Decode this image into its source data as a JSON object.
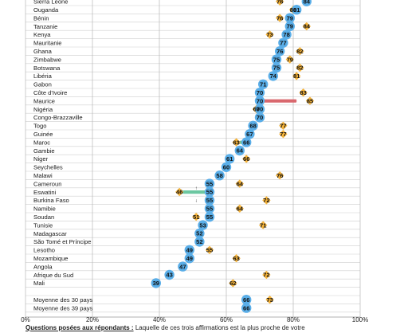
{
  "chart_data": {
    "type": "scatter",
    "x_ticks": [
      "0%",
      "20%",
      "40%",
      "60%",
      "80%",
      "100%"
    ],
    "xlim": [
      0,
      100
    ],
    "grid": true,
    "rows": [
      {
        "country": "Sierra Leone",
        "circle": 84,
        "diamond": 76
      },
      {
        "country": "Ouganda",
        "circle": 81,
        "diamond": 80
      },
      {
        "country": "Bénin",
        "circle": 79,
        "diamond": 76
      },
      {
        "country": "Tanzanie",
        "circle": 79,
        "diamond": 84
      },
      {
        "country": "Kenya",
        "circle": 78,
        "diamond": 73
      },
      {
        "country": "Mauritanie",
        "circle": 77,
        "diamond": null
      },
      {
        "country": "Ghana",
        "circle": 76,
        "diamond": 82
      },
      {
        "country": "Zimbabwe",
        "circle": 75,
        "diamond": 79
      },
      {
        "country": "Botswana",
        "circle": 75,
        "diamond": 82
      },
      {
        "country": "Libéria",
        "circle": 74,
        "diamond": 81
      },
      {
        "country": "Gabon",
        "circle": 71,
        "diamond": null
      },
      {
        "country": "Côte d'Ivoire",
        "circle": 70,
        "diamond": 83
      },
      {
        "country": "Maurice",
        "circle": 70,
        "diamond": 85
      },
      {
        "country": "Nigéria",
        "circle": 70,
        "diamond": 69
      },
      {
        "country": "Congo-Brazzaville",
        "circle": 70,
        "diamond": null
      },
      {
        "country": "Togo",
        "circle": 68,
        "diamond": 77
      },
      {
        "country": "Guinée",
        "circle": 67,
        "diamond": 77
      },
      {
        "country": "Maroc",
        "circle": 66,
        "diamond": 63
      },
      {
        "country": "Gambie",
        "circle": 64,
        "diamond": null
      },
      {
        "country": "Niger",
        "circle": 61,
        "diamond": 66
      },
      {
        "country": "Seychelles",
        "circle": 60,
        "diamond": null
      },
      {
        "country": "Malawi",
        "circle": 58,
        "diamond": 76
      },
      {
        "country": "Cameroun",
        "circle": 55,
        "diamond": 64
      },
      {
        "country": "Eswatini",
        "circle": 55,
        "diamond": 46
      },
      {
        "country": "Burkina Faso",
        "circle": 55,
        "diamond": 72
      },
      {
        "country": "Namibie",
        "circle": 55,
        "diamond": 64
      },
      {
        "country": "Soudan",
        "circle": 55,
        "diamond": 51
      },
      {
        "country": "Tunisie",
        "circle": 53,
        "diamond": 71
      },
      {
        "country": "Madagascar",
        "circle": 52,
        "diamond": null
      },
      {
        "country": "São Tomé et Príncipe",
        "circle": 52,
        "diamond": null
      },
      {
        "country": "Lesotho",
        "circle": 49,
        "diamond": 55
      },
      {
        "country": "Mozambique",
        "circle": 49,
        "diamond": 63
      },
      {
        "country": "Angola",
        "circle": 47,
        "diamond": null
      },
      {
        "country": "Afrique du Sud",
        "circle": 43,
        "diamond": 72
      },
      {
        "country": "Mali",
        "circle": 39,
        "diamond": 62
      },
      {
        "country": "",
        "circle": null,
        "diamond": null
      },
      {
        "country": "Moyenne des 30 pays",
        "circle": 66,
        "diamond": 73
      },
      {
        "country": "Moyenne des 39 pays",
        "circle": 66,
        "diamond": null
      }
    ],
    "change_bars": [
      {
        "country": "Maurice",
        "from": 70,
        "to": 81,
        "color": "#d9686e"
      },
      {
        "country": "Eswatini",
        "from": 47,
        "to": 55,
        "color": "#6cc7a1"
      },
      {
        "country": "Maroc",
        "from": 64,
        "to": 66,
        "color": "#6cc7a1"
      }
    ],
    "change_marks": [
      {
        "country": "Eswatini",
        "text": "↑"
      },
      {
        "country": "Burkina Faso",
        "text": "↓"
      }
    ],
    "colors": {
      "circle": "#5aaee8",
      "diamond": "#f5b43c",
      "grid": "#b8b8b8"
    }
  },
  "footer": {
    "bold": "Questions posées aux répondants :",
    "rest": " Laquelle de ces trois affirmations est la plus proche de votre"
  }
}
